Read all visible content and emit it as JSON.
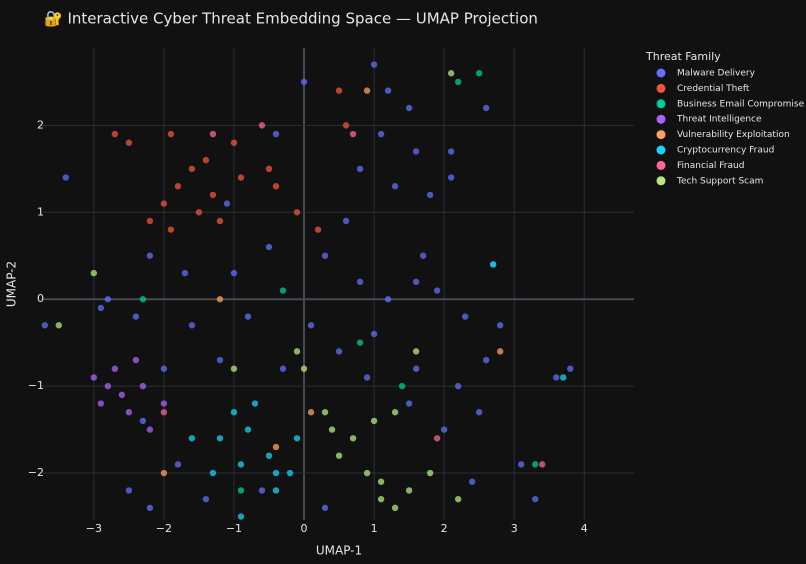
{
  "chart_data": {
    "type": "scatter",
    "title": "🔐 Interactive Cyber Threat Embedding Space — UMAP Projection",
    "x_label": "UMAP-1",
    "y_label": "UMAP-2",
    "legend_title": "Threat Family",
    "legend_position": "right",
    "grid": true,
    "xlim": [
      -3.74,
      4.71
    ],
    "ylim": [
      -2.54,
      2.89
    ],
    "xticks": [
      {
        "value": -3,
        "label": "−3"
      },
      {
        "value": -2,
        "label": "−2"
      },
      {
        "value": -1,
        "label": "−1"
      },
      0,
      1,
      2,
      3,
      4
    ],
    "yticks": [
      {
        "value": -2,
        "label": "−2"
      },
      {
        "value": -1,
        "label": "−1"
      },
      0,
      1,
      2
    ],
    "series": [
      {
        "name": "Malware Delivery",
        "color": "#636efa",
        "x": [
          1.0,
          1.2,
          1.5,
          1.1,
          1.6,
          2.1,
          1.3,
          1.8,
          1.7,
          1.6,
          1.9,
          0.6,
          0.3,
          0.8,
          1.2,
          2.3,
          2.8,
          2.6,
          3.6,
          3.8,
          -0.5,
          -1.0,
          -1.7,
          -2.2,
          -2.8,
          -2.9,
          -2.4,
          -1.6,
          -0.8,
          0.1,
          0.5,
          1.0,
          1.6,
          2.2,
          2.5,
          2.0,
          1.5,
          0.9,
          -0.3,
          -1.2,
          -2.0,
          -2.3,
          -1.8,
          -2.5,
          -2.2,
          -1.4,
          -0.6,
          0.3,
          2.4,
          3.1,
          3.3,
          -3.4,
          -3.7,
          2.6,
          2.1,
          -0.4,
          0.0,
          0.8,
          2.7,
          -1.1
        ],
        "values": [
          2.7,
          2.4,
          2.2,
          1.9,
          1.7,
          1.7,
          1.3,
          1.2,
          0.5,
          0.2,
          0.1,
          0.9,
          0.5,
          0.2,
          0.0,
          -0.2,
          -0.3,
          -0.7,
          -0.9,
          -0.8,
          0.6,
          0.3,
          0.3,
          0.5,
          0.0,
          -0.1,
          -0.2,
          -0.3,
          -0.2,
          -0.3,
          -0.6,
          -0.4,
          -0.8,
          -1.0,
          -1.3,
          -1.5,
          -1.2,
          -0.9,
          -0.8,
          -0.7,
          -0.8,
          -1.4,
          -1.9,
          -2.2,
          -2.4,
          -2.3,
          -2.2,
          -2.4,
          -2.1,
          -1.9,
          -2.3,
          1.4,
          -0.3,
          2.2,
          1.4,
          1.9,
          2.5,
          1.5,
          0.4,
          1.1
        ]
      },
      {
        "name": "Credential Theft",
        "color": "#ef553b",
        "x": [
          -1.6,
          -1.4,
          -1.8,
          -1.3,
          -1.5,
          -2.0,
          -1.9,
          -1.2,
          -0.9,
          -0.4,
          -0.1,
          0.2,
          -2.7,
          -2.5,
          -1.9,
          -1.0,
          0.6,
          0.5,
          -0.5,
          -2.2
        ],
        "values": [
          1.5,
          1.6,
          1.3,
          1.2,
          1.0,
          1.1,
          0.8,
          0.9,
          1.4,
          1.3,
          1.0,
          0.8,
          1.9,
          1.8,
          1.9,
          1.8,
          2.0,
          2.4,
          1.5,
          0.9
        ]
      },
      {
        "name": "Business Email Compromise",
        "color": "#00cc96",
        "x": [
          2.2,
          2.5,
          -0.3,
          0.8,
          -2.3,
          3.3,
          -0.9,
          1.4
        ],
        "values": [
          2.5,
          2.6,
          0.1,
          -0.5,
          0.0,
          -1.9,
          -2.2,
          -1.0
        ]
      },
      {
        "name": "Threat Intelligence",
        "color": "#ab63fa",
        "x": [
          -3.0,
          -2.8,
          -2.6,
          -2.4,
          -2.3,
          -2.5,
          -2.2,
          -2.0,
          -2.7,
          -2.9
        ],
        "values": [
          -0.9,
          -1.0,
          -1.1,
          -0.7,
          -1.0,
          -1.3,
          -1.5,
          -1.2,
          -0.8,
          -1.2
        ]
      },
      {
        "name": "Vulnerability Exploitation",
        "color": "#ffa15a",
        "x": [
          0.9,
          -1.2,
          2.8,
          0.1,
          -0.4,
          -2.0
        ],
        "values": [
          2.4,
          0.0,
          -0.6,
          -1.3,
          -1.7,
          -2.0
        ]
      },
      {
        "name": "Cryptocurrency Fraud",
        "color": "#19d3f3",
        "x": [
          -1.0,
          -1.2,
          -0.8,
          -0.9,
          -0.5,
          -0.4,
          -0.4,
          -0.2,
          -1.3,
          -1.6,
          -0.7,
          -0.1,
          2.7,
          -0.9,
          3.7
        ],
        "values": [
          -1.3,
          -1.6,
          -1.5,
          -1.9,
          -1.8,
          -2.0,
          -2.2,
          -2.0,
          -2.0,
          -1.6,
          -1.2,
          -1.6,
          0.4,
          -2.5,
          -0.9
        ]
      },
      {
        "name": "Financial Fraud",
        "color": "#ff6692",
        "x": [
          -0.6,
          0.7,
          -2.0,
          3.4,
          -1.3,
          1.9
        ],
        "values": [
          2.0,
          1.9,
          -1.3,
          -1.9,
          1.9,
          -1.6
        ]
      },
      {
        "name": "Tech Support Scam",
        "color": "#b6e880",
        "x": [
          0.4,
          0.5,
          0.7,
          1.0,
          1.3,
          0.9,
          1.1,
          1.3,
          1.5,
          1.8,
          1.1,
          0.3,
          -0.1,
          -1.0,
          2.2,
          1.6,
          2.1,
          -3.5,
          -3.0,
          0.0
        ],
        "values": [
          -1.5,
          -1.8,
          -1.6,
          -1.4,
          -1.3,
          -2.0,
          -2.3,
          -2.4,
          -2.2,
          -2.0,
          -2.1,
          -1.3,
          -0.6,
          -0.8,
          -2.3,
          -0.6,
          2.6,
          -0.3,
          0.3,
          -0.8
        ]
      }
    ]
  }
}
